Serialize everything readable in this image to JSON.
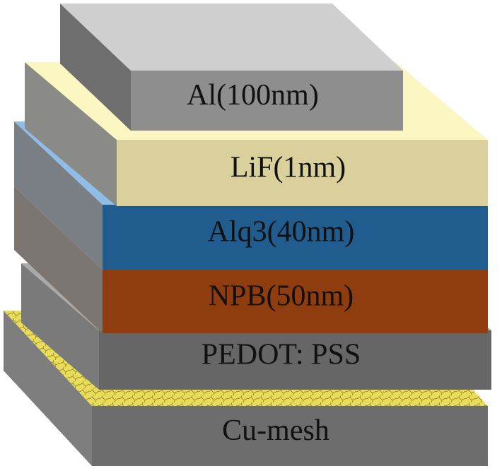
{
  "layers": [
    {
      "label": "Al(100nm)"
    },
    {
      "label": "LiF(1nm)"
    },
    {
      "label": "Alq3(40nm)"
    },
    {
      "label": "NPB(50nm)"
    },
    {
      "label": "PEDOT:  PSS"
    },
    {
      "label": "Cu-mesh"
    }
  ]
}
